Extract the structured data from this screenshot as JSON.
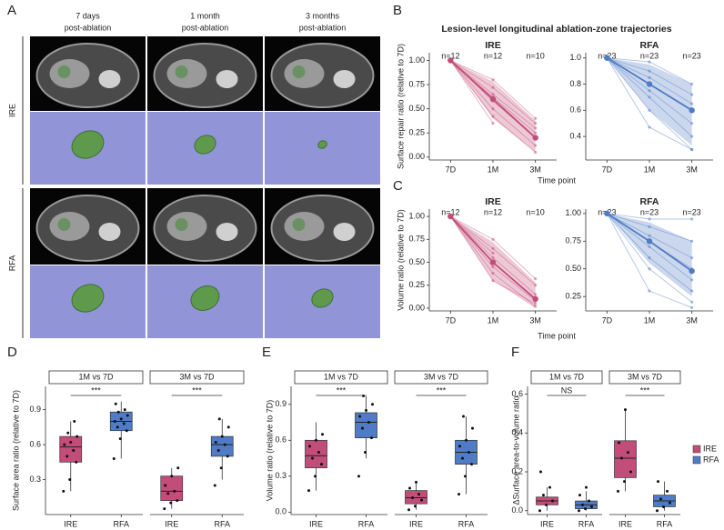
{
  "figure_a": {
    "label": "A",
    "columns": [
      [
        "7 days",
        "post-ablation"
      ],
      [
        "1 month",
        "post-ablation"
      ],
      [
        "3 months",
        "post-ablation"
      ]
    ],
    "rows": [
      "IRE",
      "RFA"
    ]
  },
  "chart_data": [
    {
      "type": "line",
      "label": "B",
      "title": "Lesion-level longitudinal ablation-zone trajectories",
      "ylabel": "Surface repair ratio (relative to 7D)",
      "xlabel": "Time point",
      "subplots": [
        {
          "title": "IRE",
          "color": "#c24d78",
          "categories": [
            "7D",
            "1M",
            "3M"
          ],
          "n_labels": [
            "n=12",
            "n=12",
            "n=10"
          ],
          "ylim": [
            -0.03,
            1.08
          ],
          "yticks": [
            {
              "value": 0,
              "label": "0.00"
            },
            {
              "value": 0.25,
              "label": "0.25"
            },
            {
              "value": 0.5,
              "label": "0.50"
            },
            {
              "value": 0.75,
              "label": "0.75"
            },
            {
              "value": 1,
              "label": "1.00"
            }
          ],
          "mean": [
            1,
            0.6,
            0.2
          ],
          "band_low": [
            1,
            0.4,
            0.05
          ],
          "band_high": [
            1,
            0.78,
            0.38
          ],
          "series": [
            {
              "values": [
                1,
                0.8,
                0.4
              ]
            },
            {
              "values": [
                1,
                0.72,
                0.35
              ]
            },
            {
              "values": [
                1,
                0.65,
                0.3
              ]
            },
            {
              "values": [
                1,
                0.58,
                0.2
              ]
            },
            {
              "values": [
                1,
                0.5,
                0.12
              ]
            },
            {
              "values": [
                1,
                0.42,
                0.05
              ]
            },
            {
              "values": [
                1,
                0.35,
                null
              ]
            },
            {
              "values": [
                1,
                0.62,
                0.25
              ]
            }
          ]
        },
        {
          "title": "RFA",
          "color": "#4f7cc4",
          "categories": [
            "7D",
            "1M",
            "3M"
          ],
          "n_labels": [
            "n=23",
            "n=23",
            "n=23"
          ],
          "ylim": [
            0.22,
            1.04
          ],
          "yticks": [
            0.4,
            0.6,
            0.8,
            {
              "value": 1,
              "label": "1.0"
            }
          ],
          "mean": [
            1,
            0.8,
            0.6
          ],
          "band_low": [
            1,
            0.6,
            0.33
          ],
          "band_high": [
            1,
            0.95,
            0.8
          ],
          "series": [
            {
              "values": [
                1,
                0.97,
                0.8
              ]
            },
            {
              "values": [
                1,
                0.9,
                0.72
              ]
            },
            {
              "values": [
                1,
                0.85,
                0.65
              ]
            },
            {
              "values": [
                1,
                0.8,
                0.6
              ]
            },
            {
              "values": [
                1,
                0.75,
                0.5
              ]
            },
            {
              "values": [
                1,
                0.7,
                0.4
              ]
            },
            {
              "values": [
                1,
                0.6,
                0.3
              ]
            },
            {
              "values": [
                1,
                0.47,
                0.3
              ]
            }
          ]
        }
      ]
    },
    {
      "type": "line",
      "label": "C",
      "ylabel": "Volume  ratio (relative to 7D)",
      "xlabel": "Time point",
      "subplots": [
        {
          "title": "IRE",
          "color": "#c24d78",
          "categories": [
            "7D",
            "1M",
            "3M"
          ],
          "n_labels": [
            "n=12",
            "n=12",
            "n=10"
          ],
          "ylim": [
            -0.03,
            1.08
          ],
          "yticks": [
            {
              "value": 0,
              "label": "0.00"
            },
            {
              "value": 0.25,
              "label": "0.25"
            },
            {
              "value": 0.5,
              "label": "0.50"
            },
            {
              "value": 0.75,
              "label": "0.75"
            },
            {
              "value": 1,
              "label": "1.00"
            }
          ],
          "mean": [
            1,
            0.5,
            0.1
          ],
          "band_low": [
            1,
            0.3,
            0
          ],
          "band_high": [
            1,
            0.72,
            0.28
          ],
          "series": [
            {
              "values": [
                1,
                0.75,
                0.32
              ]
            },
            {
              "values": [
                1,
                0.65,
                0.25
              ]
            },
            {
              "values": [
                1,
                0.55,
                0.15
              ]
            },
            {
              "values": [
                1,
                0.45,
                0.08
              ]
            },
            {
              "values": [
                1,
                0.38,
                0.02
              ]
            },
            {
              "values": [
                1,
                0.3,
                0.05
              ]
            },
            {
              "values": [
                1,
                0.6,
                null
              ]
            }
          ]
        },
        {
          "title": "RFA",
          "color": "#4f7cc4",
          "categories": [
            "7D",
            "1M",
            "3M"
          ],
          "n_labels": [
            "n=23",
            "n=23",
            "n=23"
          ],
          "ylim": [
            0.12,
            1.04
          ],
          "yticks": [
            {
              "value": 0.25,
              "label": "0.25"
            },
            {
              "value": 0.5,
              "label": "0.50"
            },
            {
              "value": 0.75,
              "label": "0.75"
            },
            {
              "value": 1,
              "label": "1.00"
            }
          ],
          "mean": [
            1,
            0.75,
            0.48
          ],
          "band_low": [
            1,
            0.55,
            0.25
          ],
          "band_high": [
            1,
            0.92,
            0.75
          ],
          "series": [
            {
              "values": [
                1,
                0.95,
                0.95
              ]
            },
            {
              "values": [
                1,
                0.88,
                0.75
              ]
            },
            {
              "values": [
                1,
                0.8,
                0.6
              ]
            },
            {
              "values": [
                1,
                0.75,
                0.5
              ]
            },
            {
              "values": [
                1,
                0.7,
                0.4
              ]
            },
            {
              "values": [
                1,
                0.6,
                0.3
              ]
            },
            {
              "values": [
                1,
                0.5,
                0.2
              ]
            },
            {
              "values": [
                1,
                0.3,
                0.15
              ]
            }
          ]
        }
      ]
    },
    {
      "type": "box",
      "label": "D",
      "ylabel": "Surface area ratio (relative to 7D)",
      "categories": [
        "IRE",
        "RFA"
      ],
      "colors": [
        "#c24d78",
        "#4f7cc4"
      ],
      "ylim": [
        0,
        1.1
      ],
      "yticks": [
        0.3,
        0.6,
        0.9
      ],
      "facets": [
        {
          "title": "1M vs 7D",
          "significance": "***",
          "boxes": [
            {
              "whisker_low": 0.2,
              "q1": 0.45,
              "median": 0.58,
              "q3": 0.67,
              "whisker_high": 0.8,
              "points": [
                0.2,
                0.3,
                0.45,
                0.5,
                0.55,
                0.6,
                0.62,
                0.67,
                0.7,
                0.8
              ]
            },
            {
              "whisker_low": 0.48,
              "q1": 0.72,
              "median": 0.8,
              "q3": 0.88,
              "whisker_high": 0.97,
              "points": [
                0.48,
                0.65,
                0.72,
                0.75,
                0.78,
                0.8,
                0.82,
                0.85,
                0.88,
                0.9,
                0.95
              ]
            }
          ]
        },
        {
          "title": "3M vs 7D",
          "significance": "***",
          "boxes": [
            {
              "whisker_low": 0.05,
              "q1": 0.12,
              "median": 0.2,
              "q3": 0.33,
              "whisker_high": 0.4,
              "points": [
                0.05,
                0.1,
                0.12,
                0.18,
                0.2,
                0.25,
                0.33,
                0.4
              ]
            },
            {
              "whisker_low": 0.3,
              "q1": 0.5,
              "median": 0.6,
              "q3": 0.67,
              "whisker_high": 0.82,
              "points": [
                0.25,
                0.4,
                0.5,
                0.55,
                0.6,
                0.62,
                0.67,
                0.75,
                0.82
              ]
            }
          ]
        }
      ]
    },
    {
      "type": "box",
      "label": "E",
      "ylabel": "Volume ratio (relative to 7D)",
      "categories": [
        "IRE",
        "RFA"
      ],
      "colors": [
        "#c24d78",
        "#4f7cc4"
      ],
      "ylim": [
        -0.02,
        1.05
      ],
      "yticks": [
        {
          "value": 0,
          "label": "0.0"
        },
        0.3,
        0.6,
        0.9
      ],
      "facets": [
        {
          "title": "1M vs 7D",
          "significance": "***",
          "boxes": [
            {
              "whisker_low": 0.18,
              "q1": 0.37,
              "median": 0.47,
              "q3": 0.6,
              "whisker_high": 0.75,
              "points": [
                0.18,
                0.3,
                0.4,
                0.45,
                0.5,
                0.55,
                0.6,
                0.65
              ]
            },
            {
              "whisker_low": 0.45,
              "q1": 0.62,
              "median": 0.75,
              "q3": 0.83,
              "whisker_high": 0.97,
              "points": [
                0.3,
                0.5,
                0.62,
                0.7,
                0.75,
                0.8,
                0.85,
                0.9,
                0.97
              ]
            }
          ]
        },
        {
          "title": "3M vs 7D",
          "significance": "***",
          "boxes": [
            {
              "whisker_low": 0.02,
              "q1": 0.07,
              "median": 0.12,
              "q3": 0.18,
              "whisker_high": 0.25,
              "points": [
                0.02,
                0.05,
                0.1,
                0.12,
                0.15,
                0.2,
                0.25
              ]
            },
            {
              "whisker_low": 0.15,
              "q1": 0.4,
              "median": 0.5,
              "q3": 0.6,
              "whisker_high": 0.8,
              "points": [
                0.15,
                0.3,
                0.4,
                0.45,
                0.5,
                0.55,
                0.6,
                0.7,
                0.8
              ]
            }
          ]
        }
      ]
    },
    {
      "type": "box",
      "label": "F",
      "ylabel": "ΔSurface area-to-volume ratio",
      "categories": [
        "IRE",
        "RFA"
      ],
      "colors": [
        "#c24d78",
        "#4f7cc4"
      ],
      "ylim": [
        -0.02,
        0.64
      ],
      "yticks": [
        {
          "value": 0,
          "label": "0.0"
        },
        0.2,
        0.4,
        0.6
      ],
      "legend": [
        "IRE",
        "RFA"
      ],
      "facets": [
        {
          "title": "1M vs 7D",
          "significance": "NS",
          "boxes": [
            {
              "whisker_low": 0,
              "q1": 0.03,
              "median": 0.05,
              "q3": 0.07,
              "whisker_high": 0.12,
              "points": [
                0,
                0.03,
                0.05,
                0.08,
                0.12,
                0.2
              ]
            },
            {
              "whisker_low": 0,
              "q1": 0.01,
              "median": 0.03,
              "q3": 0.05,
              "whisker_high": 0.1,
              "points": [
                0,
                0.01,
                0.02,
                0.03,
                0.05,
                0.08,
                0.12
              ]
            }
          ]
        },
        {
          "title": "3M vs 7D",
          "significance": "***",
          "boxes": [
            {
              "whisker_low": 0.1,
              "q1": 0.17,
              "median": 0.27,
              "q3": 0.36,
              "whisker_high": 0.52,
              "points": [
                0.1,
                0.15,
                0.2,
                0.27,
                0.3,
                0.35,
                0.52
              ]
            },
            {
              "whisker_low": 0,
              "q1": 0.02,
              "median": 0.05,
              "q3": 0.08,
              "whisker_high": 0.15,
              "points": [
                0,
                0.02,
                0.04,
                0.06,
                0.1,
                0.15
              ]
            }
          ]
        }
      ]
    }
  ]
}
